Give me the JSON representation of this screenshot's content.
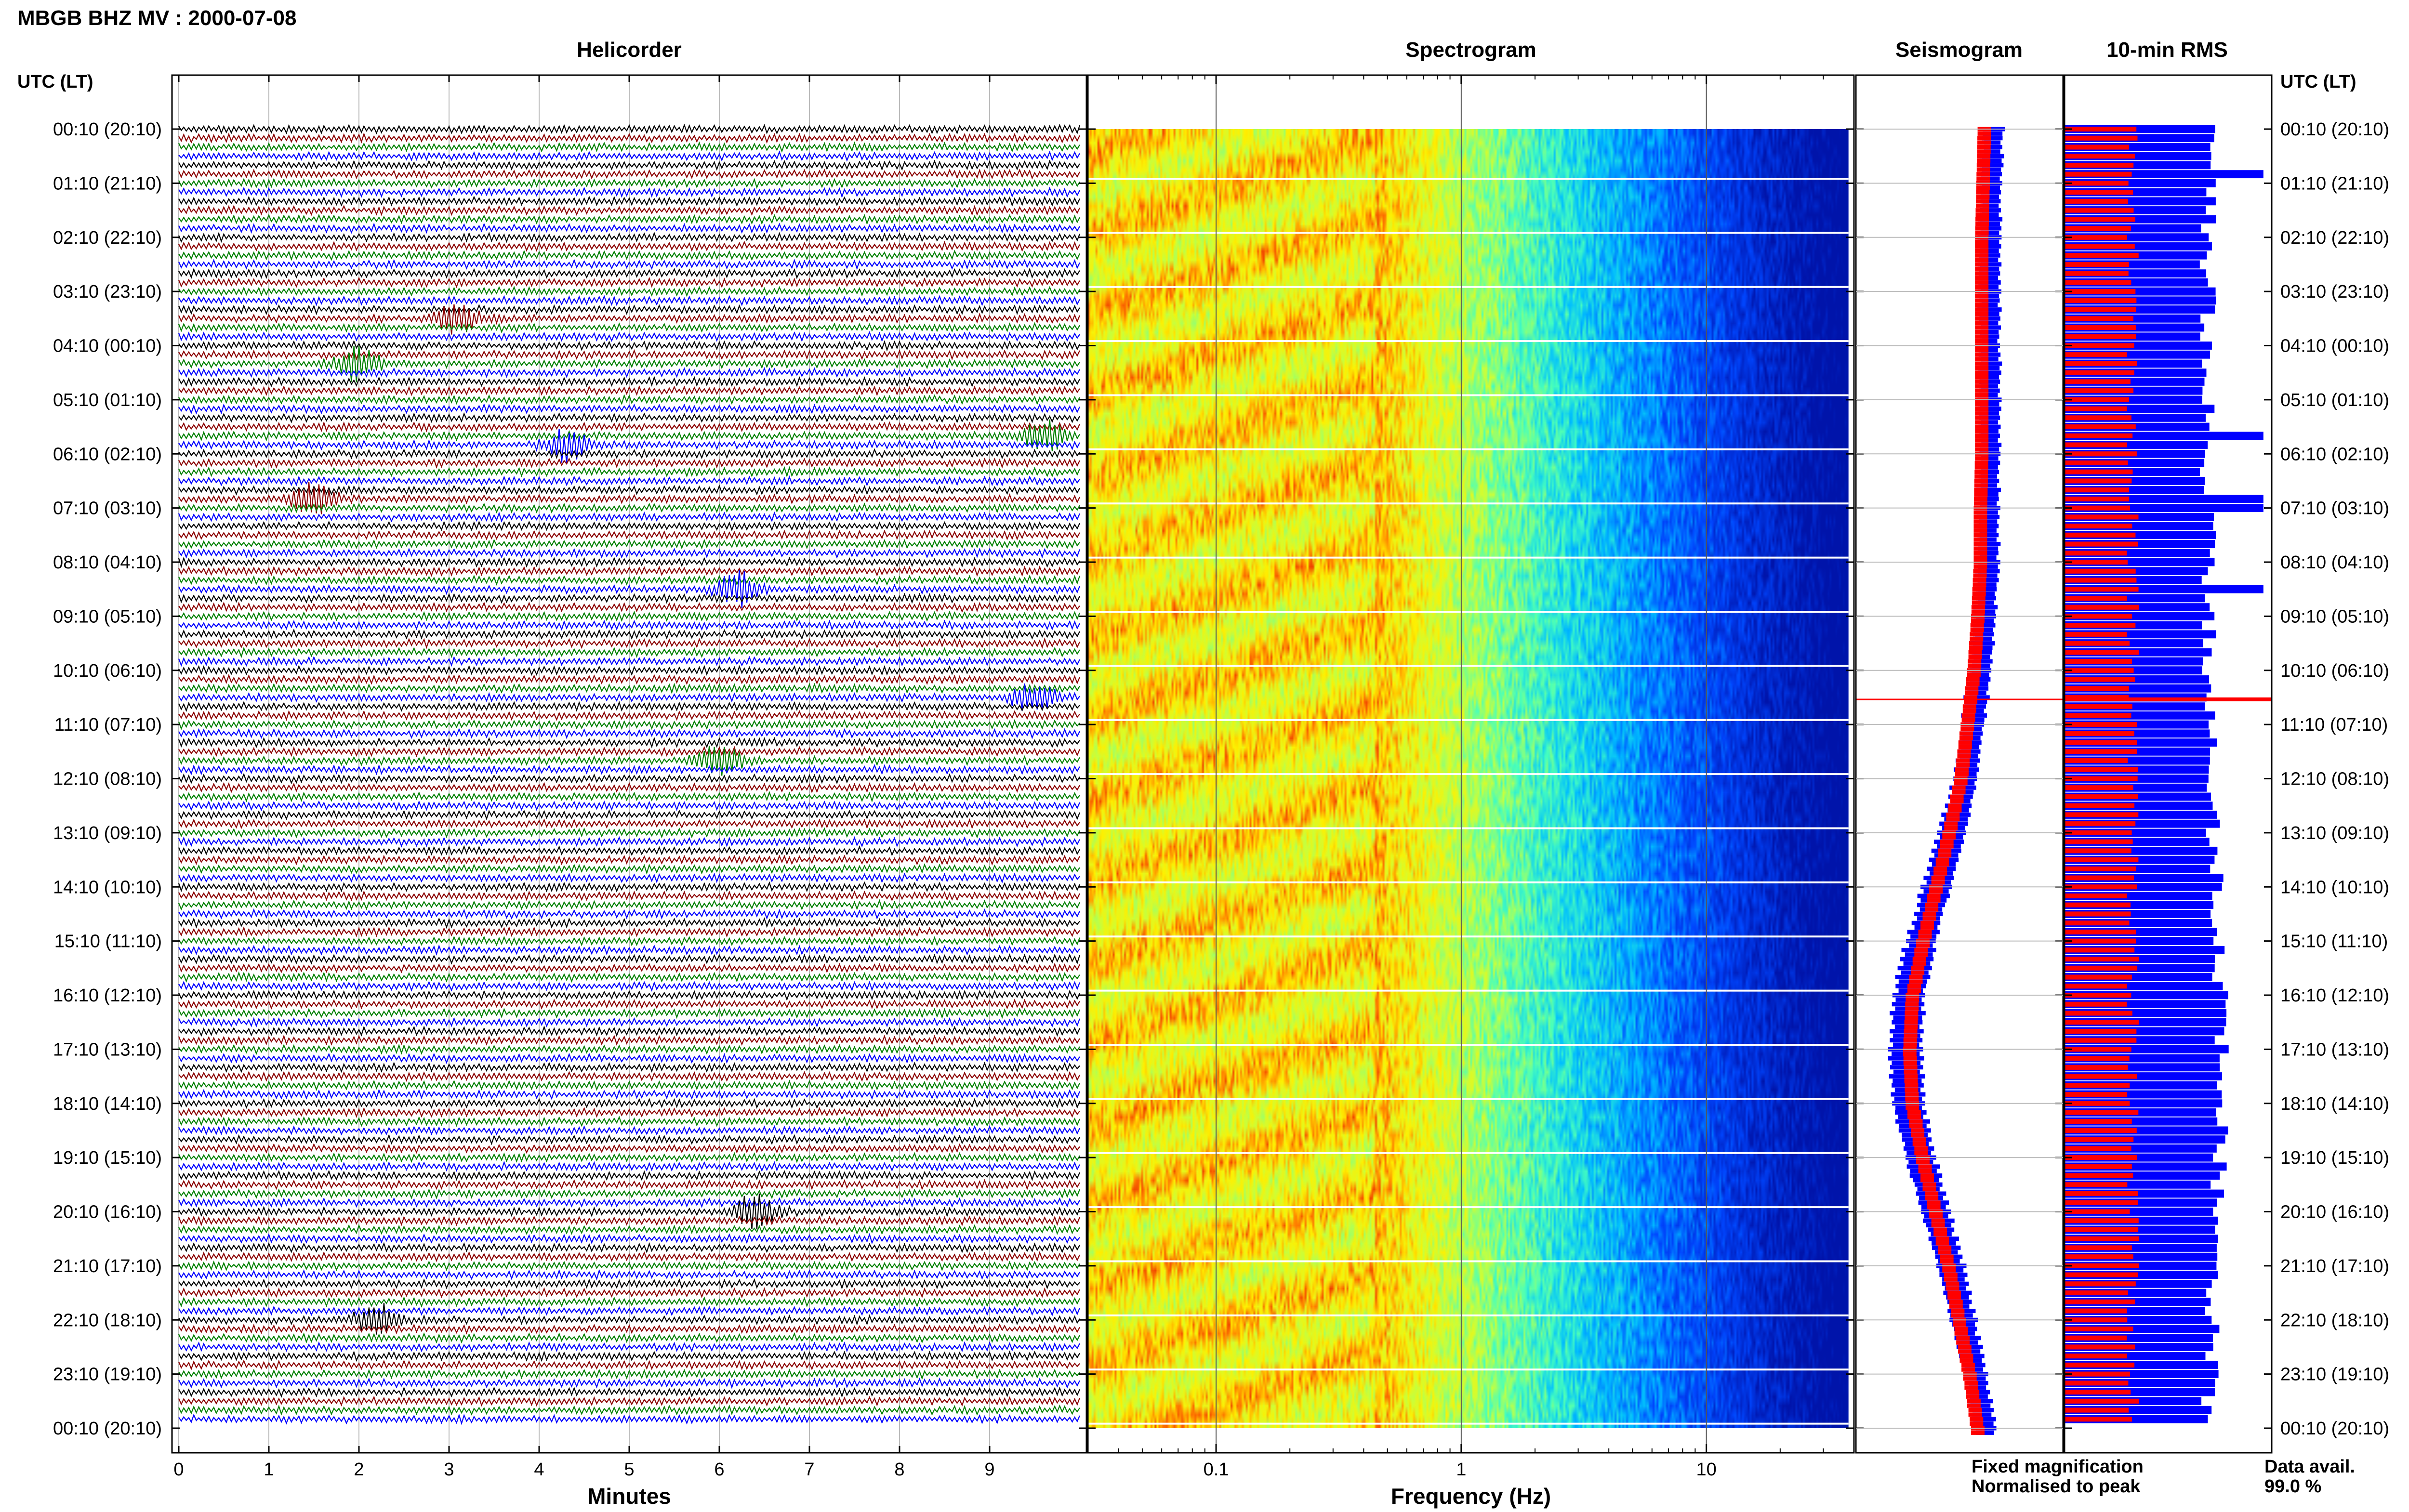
{
  "header": {
    "station_title": "MBGB BHZ MV : 2000-07-08"
  },
  "panels": {
    "helicorder": "Helicorder",
    "spectrogram": "Spectrogram",
    "seismogram": "Seismogram",
    "rms": "10-min RMS"
  },
  "time_axis_label": "UTC (LT)",
  "colors": {
    "trace_cycle": [
      "#000000",
      "#8b0000",
      "#008000",
      "#0000ff"
    ],
    "fixed_magnification": "#0000ff",
    "normalised_to_peak": "#ff0000",
    "grid": "#bbbbbb"
  },
  "legend": {
    "fixed_magnification": "Fixed magnification",
    "normalised_to_peak": "Normalised to peak"
  },
  "data_availability": {
    "label": "Data avail.",
    "value": "99.0 %"
  },
  "chart_data": [
    {
      "type": "line",
      "panel": "helicorder",
      "xlabel": "Minutes",
      "x_ticks": [
        0,
        1,
        2,
        3,
        4,
        5,
        6,
        7,
        8,
        9
      ],
      "xlim": [
        0,
        10
      ],
      "rows_per_hour": 6,
      "row_count": 144,
      "y_ticks": [
        "00:10 (20:10)",
        "01:10 (21:10)",
        "02:10 (22:10)",
        "03:10 (23:10)",
        "04:10 (00:10)",
        "05:10 (01:10)",
        "06:10 (02:10)",
        "07:10 (03:10)",
        "08:10 (04:10)",
        "09:10 (05:10)",
        "10:10 (06:10)",
        "11:10 (07:10)",
        "12:10 (08:10)",
        "13:10 (09:10)",
        "14:10 (10:10)",
        "15:10 (11:10)",
        "16:10 (12:10)",
        "17:10 (13:10)",
        "18:10 (14:10)",
        "19:10 (15:10)",
        "20:10 (16:10)",
        "21:10 (17:10)",
        "22:10 (18:10)",
        "23:10 (19:10)",
        "00:10 (20:10)"
      ],
      "events": [
        {
          "row": 21,
          "minute": 3.1
        },
        {
          "row": 26,
          "minute": 2.0
        },
        {
          "row": 34,
          "minute": 9.6
        },
        {
          "row": 35,
          "minute": 4.3
        },
        {
          "row": 41,
          "minute": 1.5
        },
        {
          "row": 51,
          "minute": 6.2
        },
        {
          "row": 63,
          "minute": 9.5
        },
        {
          "row": 70,
          "minute": 6.0
        },
        {
          "row": 120,
          "minute": 6.4
        },
        {
          "row": 132,
          "minute": 2.2
        }
      ]
    },
    {
      "type": "heatmap",
      "panel": "spectrogram",
      "xlabel": "Frequency (Hz)",
      "x_scale": "log",
      "x_tick_labels": [
        "0.1",
        "1",
        "10"
      ],
      "xlim": [
        0.03,
        40
      ],
      "y_ticks": [
        "00:10 (20:10)",
        "01:10 (21:10)",
        "02:10 (22:10)",
        "03:10 (23:10)",
        "04:10 (00:10)",
        "05:10 (01:10)",
        "06:10 (02:10)",
        "07:10 (03:10)",
        "08:10 (04:10)",
        "09:10 (05:10)",
        "10:10 (06:10)",
        "11:10 (07:10)",
        "12:10 (08:10)",
        "13:10 (09:10)",
        "14:10 (10:10)",
        "15:10 (11:10)",
        "16:10 (12:10)",
        "17:10 (13:10)",
        "18:10 (14:10)",
        "19:10 (15:10)",
        "20:10 (16:10)",
        "21:10 (17:10)",
        "22:10 (18:10)",
        "23:10 (19:10)",
        "00:10 (20:10)"
      ],
      "colormap": [
        "#ffff00",
        "#ff0000",
        "#00ffff",
        "#0000ff"
      ],
      "peak_frequency_hz": 0.45
    },
    {
      "type": "line",
      "panel": "seismogram",
      "series": [
        {
          "name": "Fixed magnification",
          "color": "#0000ff"
        },
        {
          "name": "Normalised to peak",
          "color": "#ff0000"
        }
      ],
      "hourly_envelope": [
        0.25,
        0.26,
        0.27,
        0.27,
        0.27,
        0.27,
        0.27,
        0.28,
        0.28,
        0.3,
        0.33,
        0.38,
        0.43,
        0.52,
        0.62,
        0.72,
        0.8,
        0.82,
        0.8,
        0.72,
        0.62,
        0.52,
        0.44,
        0.36,
        0.3
      ]
    },
    {
      "type": "bar",
      "panel": "rms",
      "series": [
        {
          "name": "Fixed magnification",
          "color": "#0000ff"
        },
        {
          "name": "Normalised to peak",
          "color": "#ff0000"
        }
      ]
    }
  ]
}
